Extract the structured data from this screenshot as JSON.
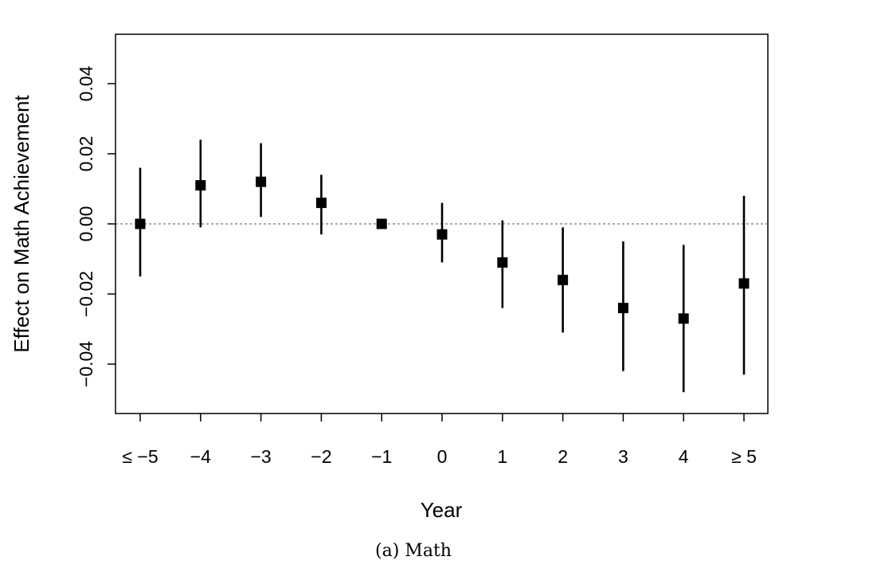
{
  "chart_data": {
    "type": "scatter",
    "title": "",
    "caption": "(a) Math",
    "xlabel": "Year",
    "ylabel": "Effect on Math Achievement",
    "categories": [
      "≤ −5",
      "−4",
      "−3",
      "−2",
      "−1",
      "0",
      "1",
      "2",
      "3",
      "4",
      "≥ 5"
    ],
    "series": [
      {
        "estimate": [
          0.0,
          0.011,
          0.012,
          0.006,
          0.0,
          -0.003,
          -0.011,
          -0.016,
          -0.024,
          -0.027,
          -0.017
        ],
        "ci_lower": [
          -0.015,
          -0.001,
          0.002,
          -0.003,
          0.0,
          -0.011,
          -0.024,
          -0.031,
          -0.042,
          -0.048,
          -0.043
        ],
        "ci_upper": [
          0.016,
          0.024,
          0.023,
          0.014,
          0.0,
          0.006,
          0.001,
          -0.001,
          -0.005,
          -0.006,
          0.008
        ]
      }
    ],
    "yticks": [
      "-0.04",
      "-0.02",
      "0.00",
      "0.02",
      "0.04"
    ],
    "ylim": [
      -0.054,
      0.054
    ],
    "reference_line": 0,
    "marker": "square",
    "marker_color": "#000000",
    "grid": false,
    "legend": "none"
  }
}
